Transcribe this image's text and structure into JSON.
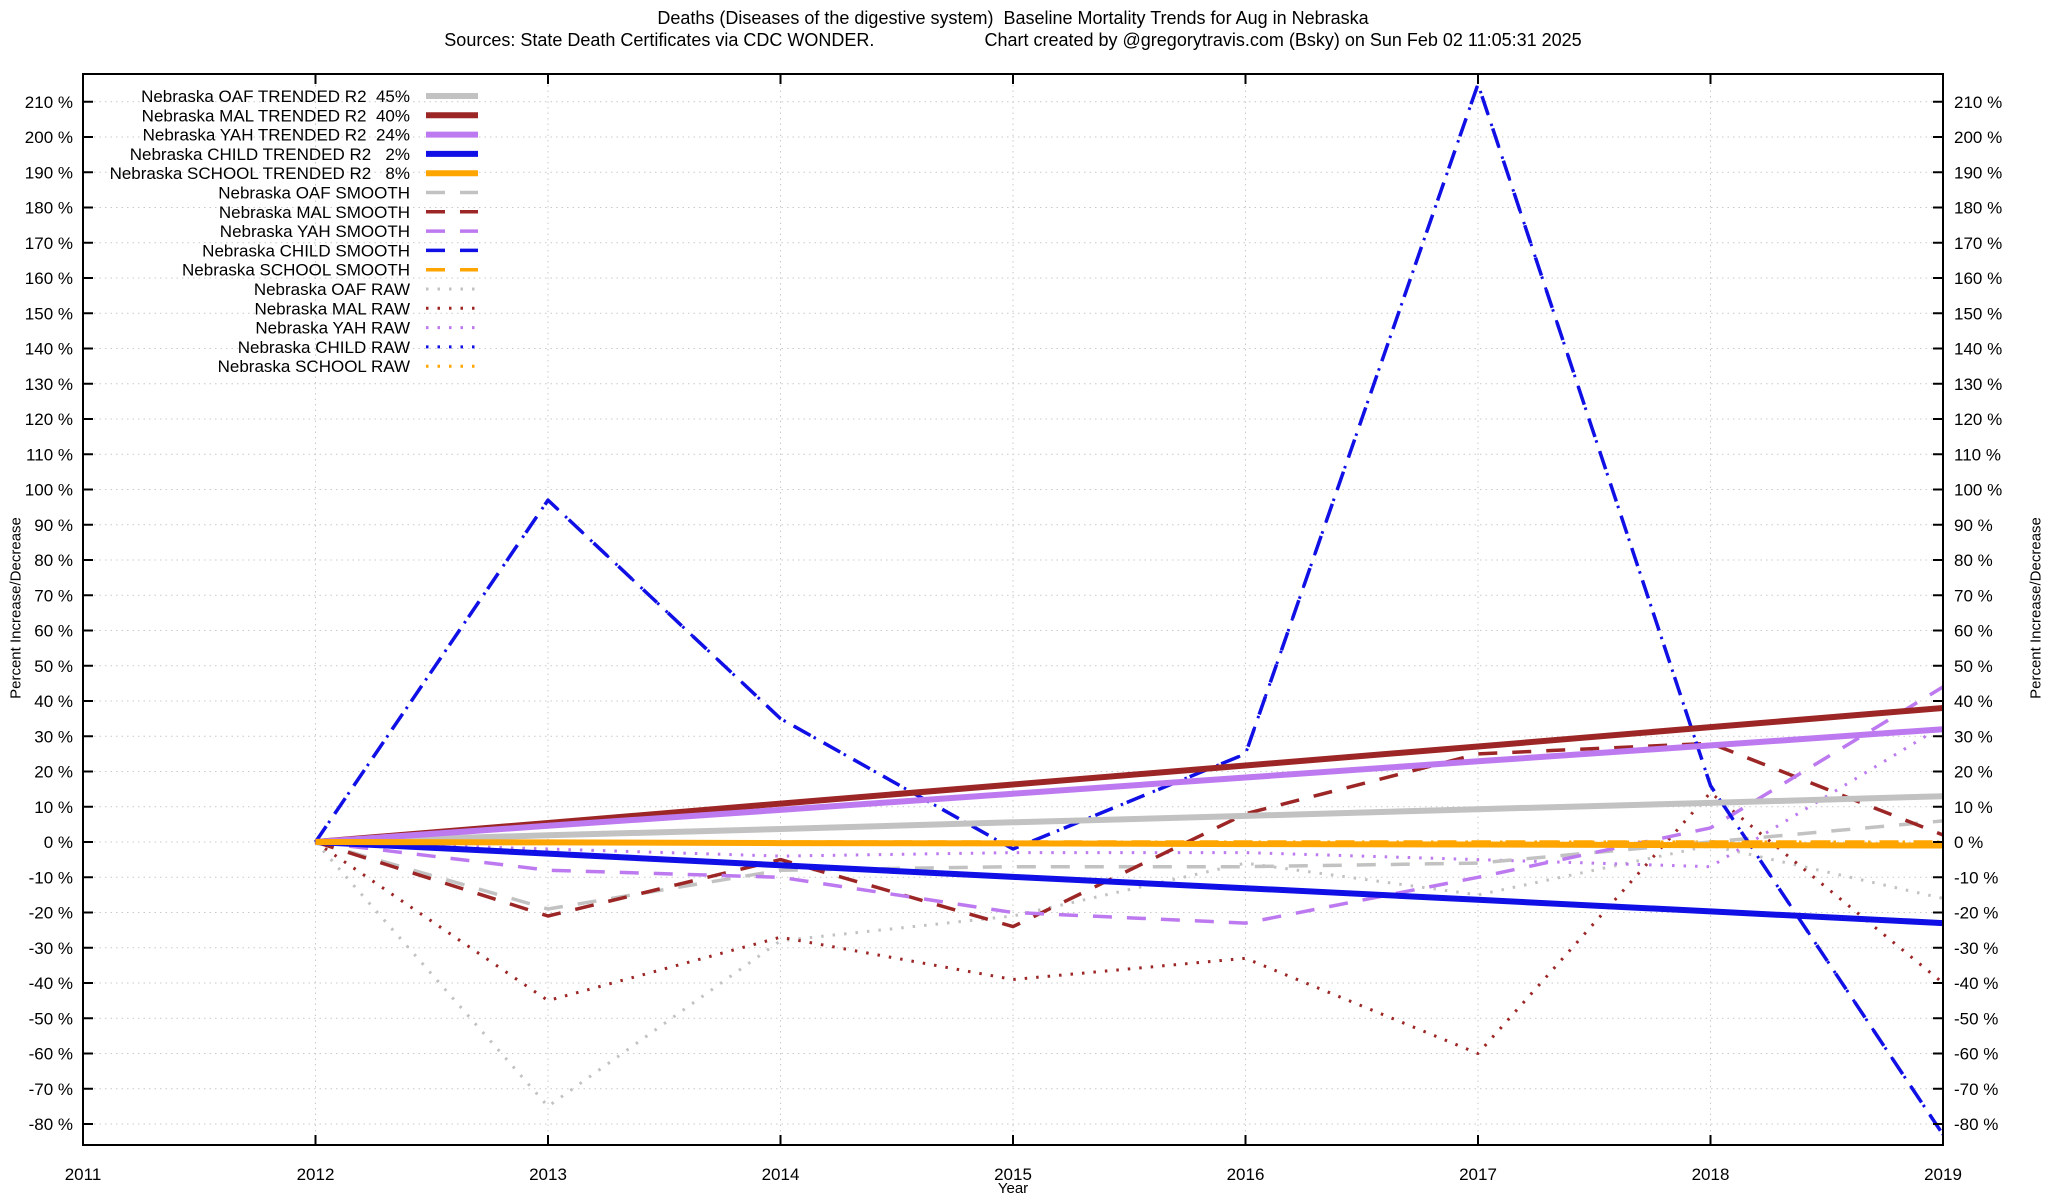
{
  "header": {
    "title": "Deaths (Diseases of the digestive system)  Baseline Mortality Trends for Aug in Nebraska",
    "subtitle": "Sources: State Death Certificates via CDC WONDER.                      Chart created by @gregorytravis.com (Bsky) on Sun Feb 02 11:05:31 2025"
  },
  "axes": {
    "x_label": "Year",
    "y_label_left": "Percent Increase/Decrease",
    "y_label_right": "Percent Increase/Decrease",
    "x_ticks": [
      2011,
      2012,
      2013,
      2014,
      2015,
      2016,
      2017,
      2018,
      2019
    ],
    "y_tick_min": -80,
    "y_tick_max": 210,
    "y_tick_step": 10,
    "y_tick_suffix": " %"
  },
  "chart_data": {
    "type": "line",
    "x": [
      2012,
      2013,
      2014,
      2015,
      2016,
      2017,
      2018,
      2019
    ],
    "xlim": [
      2011,
      2019
    ],
    "ylim": [
      -86,
      218
    ],
    "grid": true,
    "legend_position": "top-left",
    "colors": {
      "oaf": "#c2c2c2",
      "mal": "#9c2626",
      "yah": "#bd7af0",
      "child": "#0f0fe6",
      "school": "#ffa500"
    },
    "series": [
      {
        "name": "Nebraska OAF TRENDED",
        "legend_label": "Nebraska OAF TRENDED R2  45%",
        "r2": "45%",
        "group": "TRENDED",
        "style": "solid",
        "color": "#c2c2c2",
        "values": [
          0,
          1.9,
          3.7,
          5.6,
          7.4,
          9.3,
          11.1,
          13
        ]
      },
      {
        "name": "Nebraska MAL TRENDED",
        "legend_label": "Nebraska MAL TRENDED R2  40%",
        "r2": "40%",
        "group": "TRENDED",
        "style": "solid",
        "color": "#9c2626",
        "values": [
          0,
          5.4,
          10.9,
          16.3,
          21.7,
          27.1,
          32.6,
          38
        ]
      },
      {
        "name": "Nebraska YAH TRENDED",
        "legend_label": "Nebraska YAH TRENDED R2  24%",
        "r2": "24%",
        "group": "TRENDED",
        "style": "solid",
        "color": "#bd7af0",
        "values": [
          0,
          4.6,
          9.1,
          13.7,
          18.3,
          22.9,
          27.4,
          32
        ]
      },
      {
        "name": "Nebraska CHILD TRENDED",
        "legend_label": "Nebraska CHILD TRENDED R2   2%",
        "r2": "2%",
        "group": "TRENDED",
        "style": "solid",
        "color": "#0f0fe6",
        "values": [
          0,
          -3.3,
          -6.6,
          -9.9,
          -13.1,
          -16.4,
          -19.7,
          -23
        ]
      },
      {
        "name": "Nebraska SCHOOL TRENDED",
        "legend_label": "Nebraska SCHOOL TRENDED R2   8%",
        "r2": "8%",
        "group": "TRENDED",
        "style": "solid",
        "color": "#ffa500",
        "values": [
          0,
          -0.1,
          -0.3,
          -0.4,
          -0.6,
          -0.7,
          -0.9,
          -1
        ]
      },
      {
        "name": "Nebraska OAF SMOOTH",
        "legend_label": "Nebraska OAF SMOOTH",
        "group": "SMOOTH",
        "style": "dashed",
        "color": "#c2c2c2",
        "values": [
          0,
          -19,
          -8,
          -7,
          -7,
          -6,
          0,
          6
        ]
      },
      {
        "name": "Nebraska MAL SMOOTH",
        "legend_label": "Nebraska MAL SMOOTH",
        "group": "SMOOTH",
        "style": "dashed",
        "color": "#9c2626",
        "values": [
          0,
          -21,
          -5,
          -24,
          8,
          25,
          28,
          2
        ]
      },
      {
        "name": "Nebraska YAH SMOOTH",
        "legend_label": "Nebraska YAH SMOOTH",
        "group": "SMOOTH",
        "style": "dashed",
        "color": "#bd7af0",
        "values": [
          0,
          -8,
          -10,
          -20,
          -23,
          -10,
          4,
          44
        ]
      },
      {
        "name": "Nebraska CHILD SMOOTH",
        "legend_label": "Nebraska CHILD SMOOTH",
        "group": "SMOOTH",
        "style": "dashed",
        "color": "#0f0fe6",
        "values": [
          0,
          97,
          35,
          -2,
          25,
          215,
          16,
          -83
        ]
      },
      {
        "name": "Nebraska SCHOOL SMOOTH",
        "legend_label": "Nebraska SCHOOL SMOOTH",
        "group": "SMOOTH",
        "style": "dashed",
        "color": "#ffa500",
        "values": [
          0,
          0,
          0,
          0,
          0,
          0,
          0,
          0
        ]
      },
      {
        "name": "Nebraska OAF RAW",
        "legend_label": "Nebraska OAF RAW",
        "group": "RAW",
        "style": "dotted",
        "color": "#c2c2c2",
        "values": [
          0,
          -75,
          -28,
          -21,
          -6,
          -15,
          -1,
          -16
        ]
      },
      {
        "name": "Nebraska MAL RAW",
        "legend_label": "Nebraska MAL RAW",
        "group": "RAW",
        "style": "dotted",
        "color": "#9c2626",
        "values": [
          0,
          -45,
          -27,
          -39,
          -33,
          -60,
          14,
          -40
        ]
      },
      {
        "name": "Nebraska YAH RAW",
        "legend_label": "Nebraska YAH RAW",
        "group": "RAW",
        "style": "dotted",
        "color": "#bd7af0",
        "values": [
          0,
          -2,
          -4,
          -3,
          -3,
          -5,
          -7,
          33
        ]
      },
      {
        "name": "Nebraska CHILD RAW",
        "legend_label": "Nebraska CHILD RAW",
        "group": "RAW",
        "style": "dotted",
        "color": "#0f0fe6",
        "values": [
          0,
          97,
          35,
          -2,
          25,
          215,
          16,
          -83
        ]
      },
      {
        "name": "Nebraska SCHOOL RAW",
        "legend_label": "Nebraska SCHOOL RAW",
        "group": "RAW",
        "style": "dotted",
        "color": "#ffa500",
        "values": [
          0,
          0,
          0,
          0,
          0,
          0,
          0,
          0
        ]
      }
    ]
  }
}
